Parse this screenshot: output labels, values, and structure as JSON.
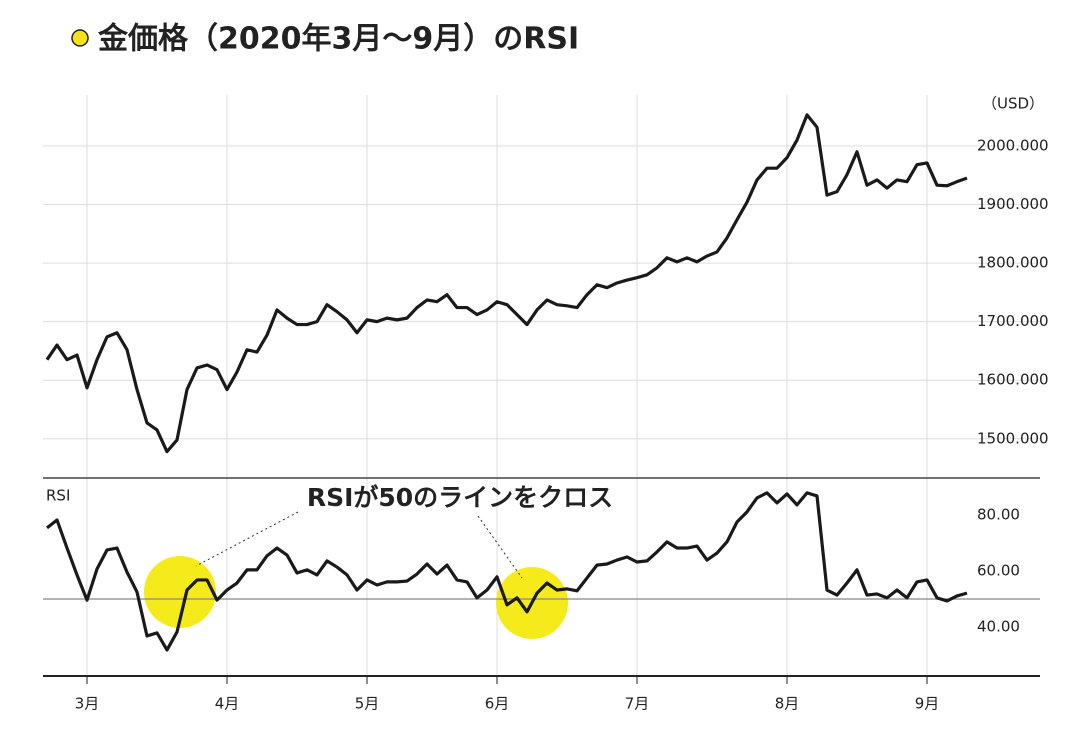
{
  "chart_data": {
    "type": "line",
    "title": "金価格（2020年3月〜9月）のRSI",
    "annotation": "RSIが50のラインをクロス",
    "categories": [
      null,
      null,
      null,
      null,
      "3月",
      null,
      null,
      null,
      null,
      null,
      null,
      null,
      null,
      null,
      null,
      null,
      null,
      null,
      "4月",
      null,
      null,
      null,
      null,
      null,
      null,
      null,
      null,
      null,
      null,
      null,
      null,
      null,
      "5月",
      null,
      null,
      null,
      null,
      null,
      null,
      null,
      null,
      null,
      null,
      null,
      null,
      "6月",
      null,
      null,
      null,
      null,
      null,
      null,
      null,
      null,
      null,
      null,
      null,
      null,
      null,
      "7月",
      null,
      null,
      null,
      null,
      null,
      null,
      null,
      null,
      null,
      null,
      null,
      null,
      null,
      null,
      "8月",
      null,
      null,
      null,
      null,
      null,
      null,
      null,
      null,
      null,
      null,
      null,
      null,
      null,
      "9月",
      null,
      null,
      null,
      null
    ],
    "panels": [
      {
        "y_label": "（USD）",
        "ylim": [
          1433,
          2087
        ],
        "grid": true,
        "yticks": [
          {
            "value": 1500,
            "label": "1500.000"
          },
          {
            "value": 1600,
            "label": "1600.000"
          },
          {
            "value": 1700,
            "label": "1700.000"
          },
          {
            "value": 1800,
            "label": "1800.000"
          },
          {
            "value": 1900,
            "label": "1900.000"
          },
          {
            "value": 2000,
            "label": "2000.000"
          }
        ],
        "series": [
          {
            "color": "#1a1a1a",
            "values": [
              1635,
              1660,
              1635,
              1643,
              1587,
              1635,
              1674,
              1681,
              1652,
              1584,
              1527,
              1515,
              1478,
              1498,
              1584,
              1621,
              1626,
              1618,
              1584,
              1614,
              1652,
              1648,
              1677,
              1720,
              1706,
              1695,
              1695,
              1700,
              1729,
              1717,
              1703,
              1681,
              1703,
              1700,
              1706,
              1703,
              1706,
              1724,
              1737,
              1734,
              1746,
              1724,
              1724,
              1712,
              1720,
              1734,
              1729,
              1712,
              1695,
              1720,
              1737,
              1729,
              1727,
              1724,
              1746,
              1763,
              1758,
              1766,
              1771,
              1775,
              1780,
              1792,
              1809,
              1802,
              1809,
              1802,
              1812,
              1819,
              1843,
              1874,
              1904,
              1942,
              1962,
              1962,
              1980,
              2010,
              2053,
              2032,
              1916,
              1922,
              1951,
              1990,
              1933,
              1942,
              1928,
              1942,
              1939,
              1968,
              1971,
              1933,
              1932,
              1939,
              1945
            ]
          }
        ]
      },
      {
        "y_label": "RSI",
        "ylim": [
          22.5,
          93.2
        ],
        "hline": 50,
        "yticks": [
          {
            "value": 40,
            "label": "40.00"
          },
          {
            "value": 60,
            "label": "60.00"
          },
          {
            "value": 80,
            "label": "80.00"
          }
        ],
        "series": [
          {
            "color": "#1a1a1a",
            "values": [
              75.4,
              78.2,
              68.2,
              58.6,
              49.6,
              60.7,
              67.5,
              68.2,
              59.6,
              52.5,
              36.8,
              37.9,
              31.8,
              38.2,
              53.2,
              56.8,
              56.8,
              49.6,
              53.2,
              55.7,
              60.4,
              60.4,
              65.4,
              68.2,
              65.7,
              59.3,
              60.4,
              58.6,
              63.6,
              61.4,
              58.6,
              53.2,
              56.8,
              55.0,
              56.1,
              56.1,
              56.4,
              58.9,
              62.5,
              58.9,
              62.1,
              56.8,
              56.1,
              50.4,
              53.2,
              57.9,
              47.9,
              50.4,
              45.4,
              52.1,
              55.7,
              53.2,
              53.6,
              52.9,
              57.5,
              62.1,
              62.5,
              63.9,
              65.0,
              63.2,
              63.6,
              66.8,
              70.4,
              68.2,
              68.2,
              68.9,
              63.9,
              66.4,
              70.4,
              77.5,
              81.1,
              86.1,
              87.9,
              84.3,
              87.5,
              83.6,
              87.9,
              86.8,
              53.2,
              51.4,
              55.7,
              60.4,
              51.4,
              51.8,
              50.4,
              53.2,
              50.4,
              56.1,
              56.8,
              50.4,
              49.3,
              51.1,
              52.1
            ]
          }
        ]
      }
    ]
  }
}
